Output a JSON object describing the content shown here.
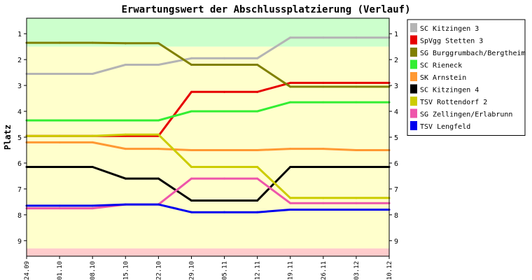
{
  "chart_data": {
    "type": "line",
    "title": "Erwartungswert der Abschlussplatzierung (Verlauf)",
    "ylabel": "Platz",
    "xlabel": "",
    "ylim": [
      9.6,
      0.4
    ],
    "y_inverted": true,
    "y_ticks": [
      1,
      2,
      3,
      4,
      5,
      6,
      7,
      8,
      9
    ],
    "y_tick_labels": [
      "1",
      "2",
      "3",
      "4",
      "5",
      "6",
      "7",
      "8",
      "9"
    ],
    "categories": [
      "24.09",
      "01.10",
      "08.10",
      "15.10",
      "22.10",
      "29.10",
      "05.11",
      "12.11",
      "19.11",
      "26.11",
      "03.12",
      "10.12"
    ],
    "grid": false,
    "legend_position": "top-right",
    "bands": [
      {
        "from": 0.4,
        "to": 1.5,
        "color": "#ccffcc"
      },
      {
        "from": 1.5,
        "to": 9.3,
        "color": "#ffffcc"
      },
      {
        "from": 9.3,
        "to": 9.6,
        "color": "#ffcccc"
      }
    ],
    "series": [
      {
        "name": "SC Kitzingen 3",
        "color": "#b4b4b4",
        "values": [
          2.55,
          2.55,
          2.55,
          2.2,
          2.2,
          1.95,
          1.95,
          1.95,
          1.15,
          1.15,
          1.15,
          1.15
        ]
      },
      {
        "name": "SpVgg Stetten 3",
        "color": "#e60000",
        "values": [
          4.95,
          4.95,
          4.95,
          4.95,
          4.95,
          3.25,
          3.25,
          3.25,
          2.9,
          2.9,
          2.9,
          2.9
        ]
      },
      {
        "name": "SG Burggrumbach/Bergtheim",
        "color": "#808000",
        "values": [
          1.35,
          1.35,
          1.35,
          1.37,
          1.37,
          2.2,
          2.2,
          2.2,
          3.05,
          3.05,
          3.05,
          3.05
        ]
      },
      {
        "name": "SC Rieneck",
        "color": "#33ee33",
        "values": [
          4.35,
          4.35,
          4.35,
          4.35,
          4.35,
          4.0,
          4.0,
          4.0,
          3.65,
          3.65,
          3.65,
          3.65
        ]
      },
      {
        "name": "SK Arnstein",
        "color": "#ff9933",
        "values": [
          5.2,
          5.2,
          5.2,
          5.45,
          5.45,
          5.5,
          5.5,
          5.5,
          5.45,
          5.45,
          5.5,
          5.5
        ]
      },
      {
        "name": "SC Kitzingen 4",
        "color": "#000000",
        "values": [
          6.15,
          6.15,
          6.15,
          6.6,
          6.6,
          7.45,
          7.45,
          7.45,
          6.15,
          6.15,
          6.15,
          6.15
        ]
      },
      {
        "name": "TSV Rottendorf 2",
        "color": "#cccc00",
        "values": [
          4.95,
          4.95,
          4.95,
          4.9,
          4.9,
          6.15,
          6.15,
          6.15,
          7.35,
          7.35,
          7.35,
          7.35
        ]
      },
      {
        "name": "SG Zellingen/Erlabrunn",
        "color": "#ee55aa",
        "values": [
          7.75,
          7.75,
          7.75,
          7.6,
          7.6,
          6.6,
          6.6,
          6.6,
          7.55,
          7.55,
          7.55,
          7.55
        ]
      },
      {
        "name": "TSV Lengfeld",
        "color": "#0000ee",
        "values": [
          7.65,
          7.65,
          7.65,
          7.6,
          7.6,
          7.9,
          7.9,
          7.9,
          7.8,
          7.8,
          7.8,
          7.8
        ]
      }
    ]
  }
}
